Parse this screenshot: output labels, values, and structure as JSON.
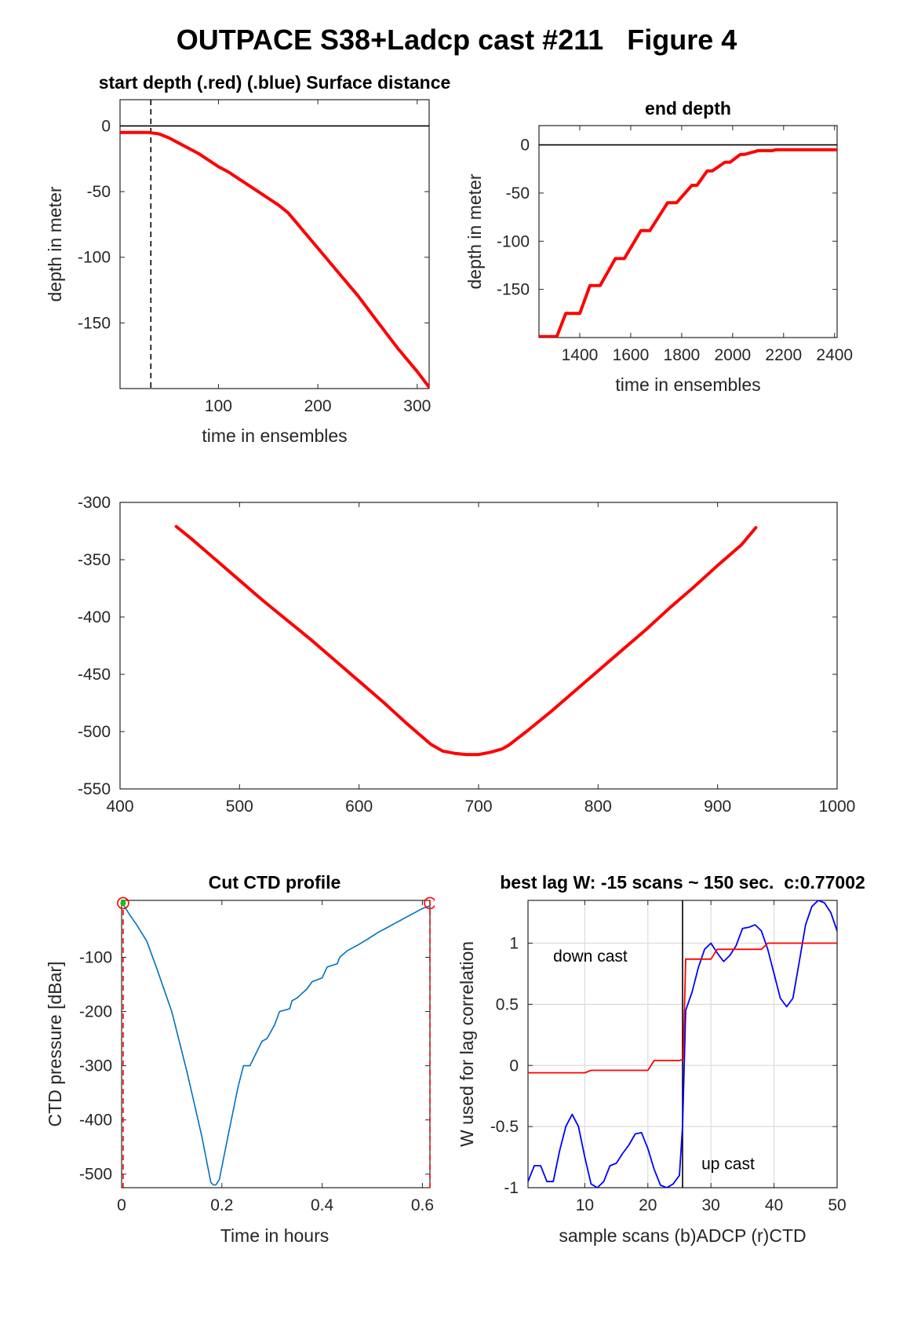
{
  "figure_title": "OUTPACE S38+Ladcp cast #211   Figure 4",
  "chart_data": [
    {
      "id": "start",
      "type": "line",
      "title": "start depth (.red) (.blue) Surface distance",
      "xlabel": "time in ensembles",
      "ylabel": "depth in meter",
      "xlim": [
        1,
        312
      ],
      "ylim": [
        -200,
        20
      ],
      "xticks": [
        100,
        200,
        300
      ],
      "yticks": [
        0,
        -50,
        -100,
        -150
      ],
      "grid": false,
      "zero_line": true,
      "vline": {
        "x": 32,
        "style": "dashed"
      },
      "series": [
        {
          "color": "#ff0000",
          "x": [
            1,
            10,
            20,
            30,
            40,
            50,
            60,
            70,
            80,
            90,
            100,
            110,
            120,
            130,
            140,
            150,
            160,
            170,
            180,
            190,
            200,
            210,
            220,
            230,
            240,
            250,
            260,
            270,
            280,
            290,
            300,
            312
          ],
          "y": [
            -5,
            -5,
            -5,
            -5,
            -6,
            -9,
            -13,
            -17,
            -21,
            -26,
            -31,
            -35,
            -40,
            -45,
            -50,
            -55,
            -60,
            -66,
            -75,
            -84,
            -93,
            -102,
            -111,
            -120,
            -129,
            -139,
            -149,
            -159,
            -169,
            -178,
            -187,
            -199
          ]
        }
      ]
    },
    {
      "id": "end",
      "type": "line",
      "title": "end depth",
      "xlabel": "time in ensembles",
      "ylabel": "depth in meter",
      "xlim": [
        1240,
        2410
      ],
      "ylim": [
        -200,
        20
      ],
      "xticks": [
        1400,
        1600,
        1800,
        2000,
        2200,
        2400
      ],
      "yticks": [
        0,
        -50,
        -100,
        -150
      ],
      "grid": false,
      "zero_line": true,
      "series": [
        {
          "color": "#ff0000",
          "x": [
            1240,
            1310,
            1345,
            1400,
            1440,
            1480,
            1540,
            1575,
            1640,
            1675,
            1745,
            1780,
            1840,
            1860,
            1900,
            1920,
            1970,
            1990,
            2030,
            2045,
            2100,
            2110,
            2150,
            2155,
            2170,
            2410
          ],
          "y": [
            -199,
            -199,
            -175,
            -175,
            -146,
            -146,
            -118,
            -118,
            -89,
            -89,
            -60,
            -60,
            -42,
            -42,
            -27,
            -27,
            -18,
            -18,
            -10,
            -10,
            -6,
            -6,
            -6,
            -6,
            -5,
            -5
          ]
        }
      ]
    },
    {
      "id": "middle",
      "type": "line",
      "title": "",
      "xlabel": "",
      "ylabel": "",
      "xlim": [
        400,
        1000
      ],
      "ylim": [
        -550,
        -300
      ],
      "xticks": [
        400,
        500,
        600,
        700,
        800,
        900,
        1000
      ],
      "yticks": [
        -300,
        -350,
        -400,
        -450,
        -500,
        -550
      ],
      "grid": false,
      "series": [
        {
          "color": "#ff0000",
          "x": [
            447,
            460,
            480,
            500,
            520,
            540,
            560,
            580,
            600,
            620,
            640,
            660,
            670,
            680,
            690,
            700,
            710,
            720,
            725,
            740,
            760,
            780,
            800,
            820,
            840,
            860,
            880,
            900,
            920,
            932
          ],
          "y": [
            -321,
            -332,
            -350,
            -368,
            -386,
            -403,
            -420,
            -438,
            -456,
            -474,
            -493,
            -511,
            -517,
            -519,
            -520,
            -520,
            -518,
            -515,
            -512,
            -500,
            -483,
            -465,
            -447,
            -429,
            -411,
            -392,
            -374,
            -355,
            -337,
            -322
          ]
        }
      ]
    },
    {
      "id": "ctd",
      "type": "line",
      "title": "Cut CTD profile",
      "xlabel": "Time in hours",
      "ylabel": "CTD pressure [dBar]",
      "xlim": [
        0,
        0.615
      ],
      "ylim": [
        -525,
        5
      ],
      "xticks": [
        0,
        0.2,
        0.4,
        0.6
      ],
      "yticks": [
        -100,
        -200,
        -300,
        -400,
        -500
      ],
      "grid": false,
      "markers": [
        {
          "x": 0.003,
          "y": 0,
          "shape": "circle",
          "color": "#ff0000"
        },
        {
          "x": 0.615,
          "y": 0,
          "shape": "circle",
          "color": "#ff0000"
        },
        {
          "x": 0.003,
          "y": 0,
          "shape": "dot",
          "color": "#00cc00"
        }
      ],
      "vlines": [
        {
          "x": 0.003,
          "style": "dashed",
          "color": "#ff0000"
        },
        {
          "x": 0.615,
          "style": "dashed",
          "color": "#ff0000"
        }
      ],
      "series": [
        {
          "color": "#0072bd",
          "x": [
            0.003,
            0.015,
            0.03,
            0.05,
            0.07,
            0.1,
            0.13,
            0.16,
            0.178,
            0.183,
            0.188,
            0.195,
            0.21,
            0.232,
            0.243,
            0.256,
            0.28,
            0.29,
            0.305,
            0.315,
            0.335,
            0.34,
            0.35,
            0.37,
            0.38,
            0.4,
            0.41,
            0.43,
            0.435,
            0.45,
            0.47,
            0.49,
            0.51,
            0.53,
            0.55,
            0.57,
            0.59,
            0.6,
            0.615
          ],
          "y": [
            -2,
            -20,
            -40,
            -70,
            -120,
            -200,
            -310,
            -430,
            -515,
            -520,
            -520,
            -510,
            -440,
            -340,
            -300,
            -300,
            -255,
            -250,
            -225,
            -200,
            -195,
            -180,
            -175,
            -158,
            -145,
            -138,
            -118,
            -112,
            -100,
            -88,
            -78,
            -67,
            -55,
            -45,
            -35,
            -25,
            -15,
            -10,
            -5
          ]
        }
      ]
    },
    {
      "id": "lag",
      "type": "line",
      "title": "best lag W: -15 scans ~ 150 sec.  c:0.77002",
      "xlabel": "sample scans (b)ADCP (r)CTD",
      "ylabel": "W used for lag correlation",
      "xlim": [
        1,
        50
      ],
      "ylim": [
        -1,
        1.35
      ],
      "xticks": [
        10,
        20,
        30,
        40,
        50
      ],
      "yticks": [
        1,
        0.5,
        0,
        -0.5,
        -1
      ],
      "grid": true,
      "vline": {
        "x": 25.5,
        "style": "solid"
      },
      "annotations": [
        {
          "text": "down cast",
          "x": 5,
          "y": 0.85
        },
        {
          "text": "up cast",
          "x": 28.5,
          "y": -0.85
        }
      ],
      "series": [
        {
          "color": "#0000ff",
          "x": [
            1,
            2,
            3,
            4,
            5,
            6,
            7,
            8,
            9,
            10,
            11,
            12,
            13,
            14,
            15,
            16,
            17,
            18,
            19,
            20,
            21,
            22,
            23,
            24,
            25,
            25.5,
            26,
            27,
            28,
            29,
            30,
            31,
            32,
            33,
            34,
            35,
            36,
            37,
            38,
            39,
            40,
            41,
            42,
            43,
            44,
            45,
            46,
            47,
            48,
            49,
            50
          ],
          "y": [
            -0.95,
            -0.82,
            -0.82,
            -0.95,
            -0.95,
            -0.7,
            -0.5,
            -0.4,
            -0.5,
            -0.75,
            -0.97,
            -1.0,
            -0.95,
            -0.82,
            -0.8,
            -0.72,
            -0.65,
            -0.56,
            -0.55,
            -0.68,
            -0.85,
            -0.98,
            -1.0,
            -0.97,
            -0.9,
            -0.5,
            0.45,
            0.6,
            0.8,
            0.95,
            1.0,
            0.92,
            0.85,
            0.9,
            0.98,
            1.12,
            1.13,
            1.15,
            1.1,
            0.95,
            0.75,
            0.55,
            0.48,
            0.55,
            0.85,
            1.15,
            1.3,
            1.35,
            1.33,
            1.25,
            1.1
          ]
        },
        {
          "color": "#ff0000",
          "x": [
            1,
            10,
            11,
            20,
            21,
            25,
            25.6,
            26,
            30,
            31,
            38,
            39,
            50
          ],
          "y": [
            -0.06,
            -0.06,
            -0.04,
            -0.04,
            0.04,
            0.04,
            0.05,
            0.87,
            0.87,
            0.95,
            0.95,
            1.0,
            1.0
          ]
        }
      ]
    }
  ]
}
